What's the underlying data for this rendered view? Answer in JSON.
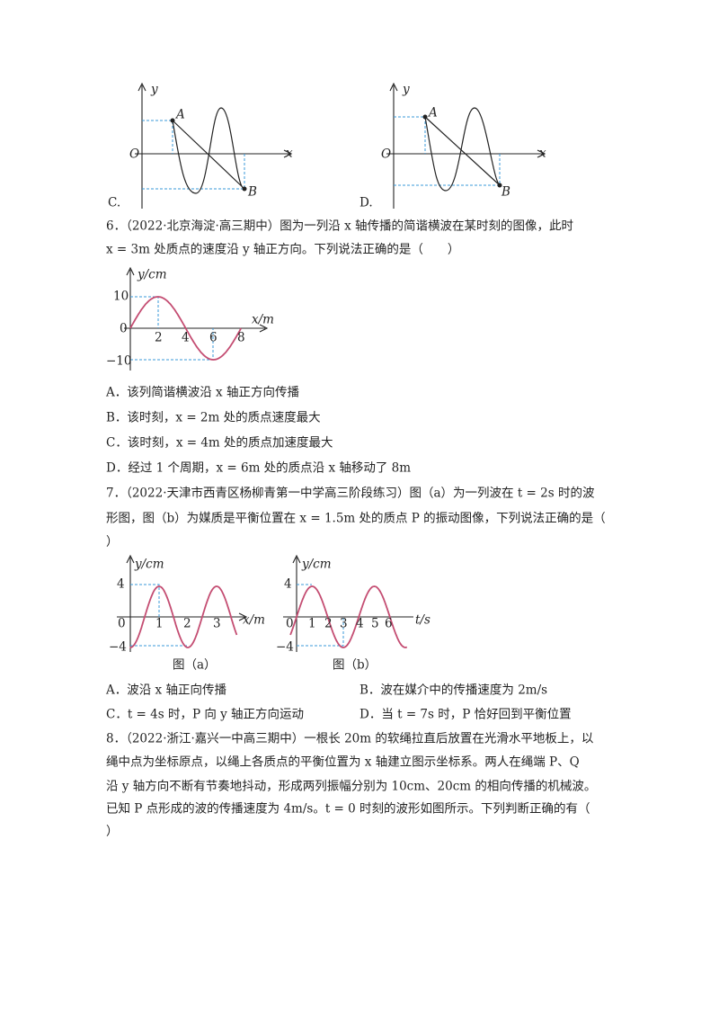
{
  "q5": {
    "options": [
      "C.",
      "D."
    ],
    "labels": [
      "y",
      "x",
      "O",
      "A",
      "B"
    ]
  },
  "q6": {
    "lines": [
      "6．（2022·北京海淀·高三期中）图为一列沿 x 轴传播的简谐横波在某时刻的图像，此时",
      "x = 3m 处质点的速度沿 y 轴正方向。下列说法正确的是（　　）"
    ],
    "figure": {
      "y_label": "y/cm",
      "x_label": "x/m",
      "y_ticks": [
        "10",
        "0",
        "−10"
      ],
      "x_ticks": [
        "2",
        "4",
        "6",
        "8"
      ]
    },
    "options": [
      "A．该列简谐横波沿 x 轴正方向传播",
      "B．该时刻，x = 2m 处的质点速度最大",
      "C．该时刻，x = 4m 处的质点加速度最大",
      "D．经过 1 个周期，x = 6m 处的质点沿 x 轴移动了 8m"
    ]
  },
  "q7": {
    "lines": [
      "7．（2022·天津市西青区杨柳青第一中学高三阶段练习）图（a）为一列波在 t = 2s 时的波",
      "形图，图（b）为媒质是平衡位置在 x = 1.5m 处的质点 P 的振动图像，下列说法正确的是（",
      "）"
    ],
    "figure_a": {
      "y_label": "y/cm",
      "x_label": "x/m",
      "y_ticks": [
        "4",
        "0",
        "−4"
      ],
      "x_ticks": [
        "1",
        "2",
        "3"
      ],
      "caption": "图（a）"
    },
    "figure_b": {
      "y_label": "y/cm",
      "x_label": "t/s",
      "y_ticks": [
        "4",
        "0",
        "−4"
      ],
      "x_ticks": [
        "1",
        "2",
        "3",
        "4",
        "5",
        "6"
      ],
      "caption": "图（b）"
    },
    "options": [
      "A．波沿 x 轴正向传播",
      "B．波在媒介中的传播速度为 2m/s",
      "C．t = 4s 时，P 向 y 轴正方向运动",
      "D．当 t = 7s 时，P 恰好回到平衡位置"
    ]
  },
  "q8": {
    "lines": [
      "8．（2022·浙江·嘉兴一中高三期中）一根长 20m 的软绳拉直后放置在光滑水平地板上，以",
      "绳中点为坐标原点，以绳上各质点的平衡位置为 x 轴建立图示坐标系。两人在绳端 P、Q",
      "沿 y 轴方向不断有节奏地抖动，形成两列振幅分别为 10cm、20cm 的相向传播的机械波。",
      "已知 P 点形成的波的传播速度为 4m/s。t = 0 时刻的波形如图所示。下列判断正确的有（",
      "）"
    ]
  }
}
